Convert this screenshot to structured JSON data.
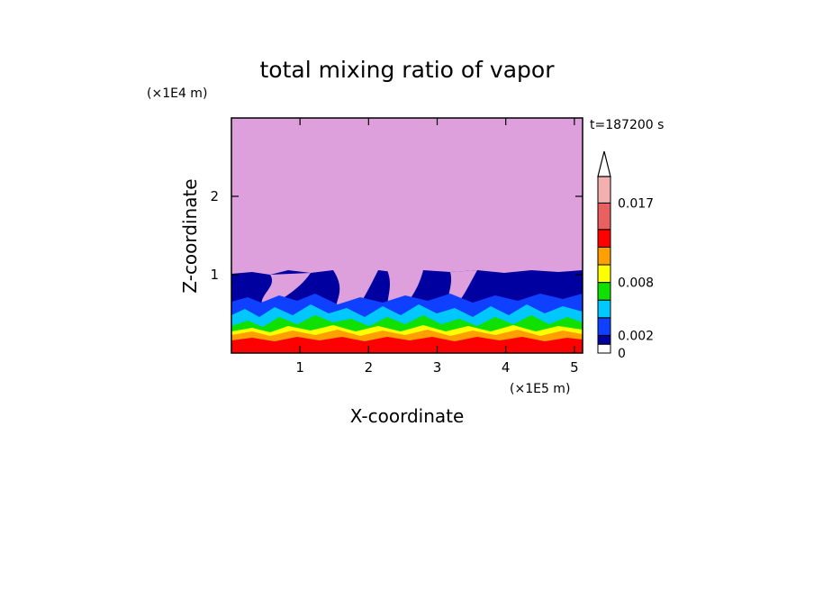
{
  "chart_data": {
    "type": "heatmap",
    "title": "total mixing ratio of vapor",
    "xlabel": "X-coordinate",
    "ylabel": "Z-coordinate",
    "x_unit": "(×1E5 m)",
    "y_unit": "(×1E4 m)",
    "time_label": "t=187200 s",
    "xlim": [
      0,
      5.12
    ],
    "ylim": [
      0,
      3.0
    ],
    "x_ticks": [
      "1",
      "2",
      "3",
      "4",
      "5"
    ],
    "y_ticks": [
      "1",
      "2"
    ],
    "colorbar": {
      "levels": [
        0,
        0.001,
        0.002,
        0.004,
        0.006,
        0.008,
        0.01,
        0.012,
        0.014,
        0.017,
        0.02
      ],
      "labeled": [
        {
          "value": 0,
          "text": "0"
        },
        {
          "value": 0.002,
          "text": "0.002"
        },
        {
          "value": 0.008,
          "text": "0.008"
        },
        {
          "value": 0.017,
          "text": "0.017"
        }
      ],
      "colors": [
        "#ffffff",
        "#0000a0",
        "#1040ff",
        "#00c8ff",
        "#10e000",
        "#ffff00",
        "#ffa000",
        "#ff0000",
        "#e86060",
        "#f4b0b0"
      ],
      "extend": "max"
    },
    "regions": [
      {
        "level": "above 1.0 (×1E4 m)",
        "color": "#dda0dd"
      },
      {
        "level": "0.6–1.0",
        "color": "#0000a0"
      },
      {
        "level": "0.45–0.6",
        "color": "#1040ff"
      },
      {
        "level": "0.35–0.45",
        "color": "#00c8ff"
      },
      {
        "level": "0.27–0.35",
        "color": "#10e000"
      },
      {
        "level": "0.23–0.27",
        "color": "#ffff00"
      },
      {
        "level": "0.15–0.23",
        "color": "#ffa000"
      },
      {
        "level": "0.0–0.15",
        "color": "#ff0000"
      }
    ]
  }
}
